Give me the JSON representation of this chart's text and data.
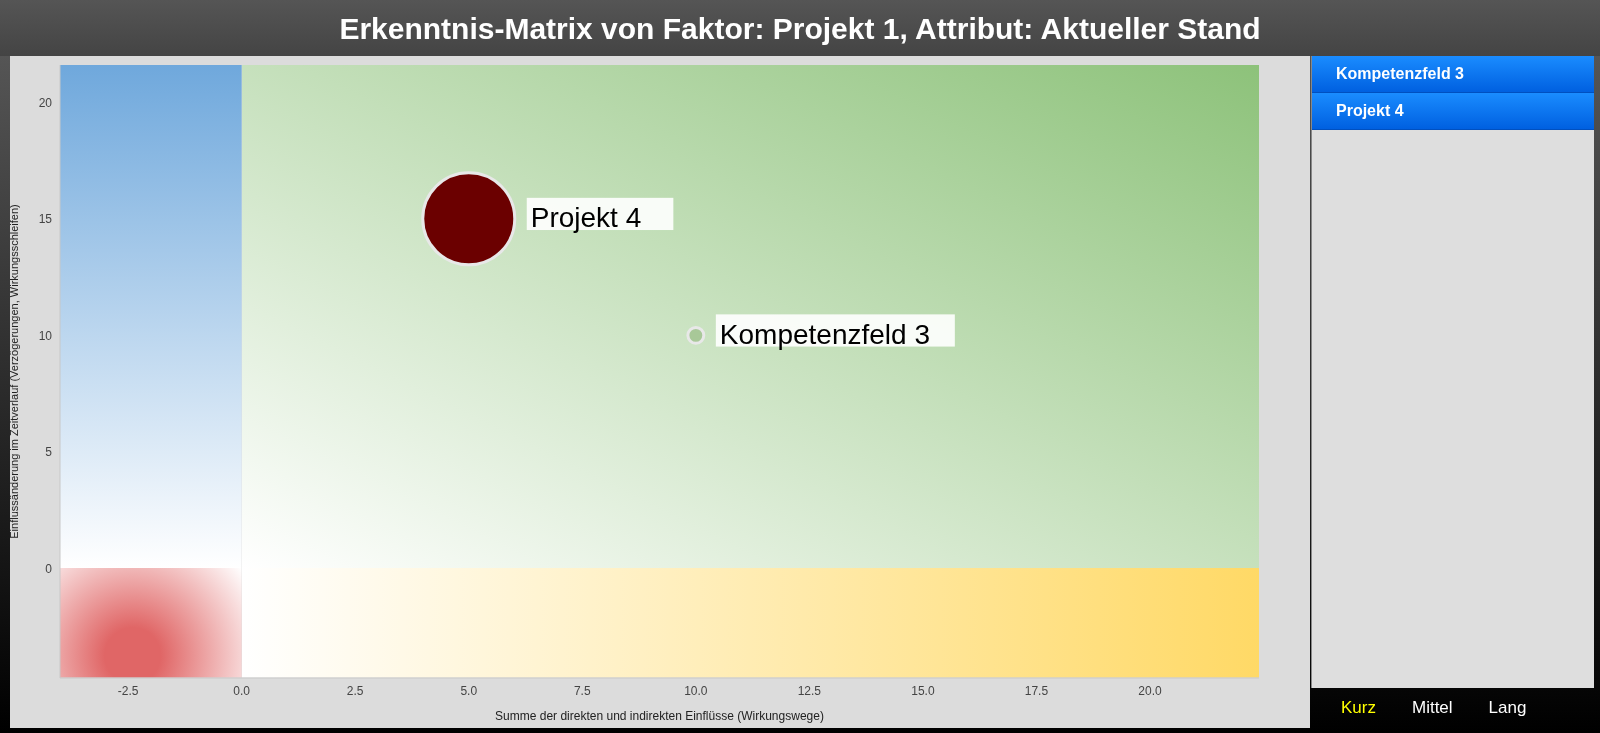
{
  "chart_data": {
    "type": "bubble",
    "title": "Erkenntnis-Matrix von Faktor: Projekt 1, Attribut: Aktueller Stand",
    "xlabel": "Summe der direkten und indirekten Einflüsse (Wirkungswege)",
    "ylabel": "Einflussänderung im Zeitverlauf (Verzögerungen, Wirkungsschleifen)",
    "xlim": [
      -4,
      22.4
    ],
    "ylim": [
      -4.7,
      21.6
    ],
    "xticks": [
      {
        "value": -2.5,
        "label": "-2.5"
      },
      {
        "value": 0,
        "label": "0.0"
      },
      {
        "value": 2.5,
        "label": "2.5"
      },
      {
        "value": 5,
        "label": "5.0"
      },
      {
        "value": 7.5,
        "label": "7.5"
      },
      {
        "value": 10,
        "label": "10.0"
      },
      {
        "value": 12.5,
        "label": "12.5"
      },
      {
        "value": 15,
        "label": "15.0"
      },
      {
        "value": 17.5,
        "label": "17.5"
      },
      {
        "value": 20,
        "label": "20.0"
      }
    ],
    "yticks": [
      0,
      5,
      10,
      15,
      20
    ],
    "series": [
      {
        "name": "Projekt 4",
        "color": "#6b0000",
        "x": [
          5
        ],
        "values": [
          15
        ],
        "sizes": [
          1
        ]
      },
      {
        "name": "Kompetenzfeld 3",
        "color": "#a8c898",
        "x": [
          10
        ],
        "values": [
          10
        ],
        "sizes": [
          0.03
        ]
      }
    ],
    "annotations": [
      "Kurz",
      "Mittel",
      "Lang"
    ],
    "grid": false,
    "legend": "right"
  }
}
